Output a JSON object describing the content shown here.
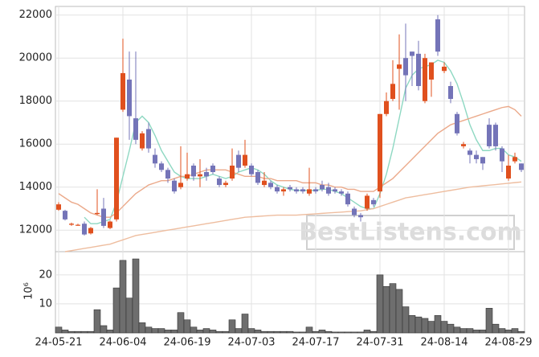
{
  "chart_data": {
    "type": "candlestick",
    "categories": [
      "24-05-21",
      null,
      null,
      null,
      null,
      null,
      null,
      null,
      null,
      null,
      "24-06-04",
      null,
      null,
      null,
      null,
      null,
      null,
      null,
      null,
      null,
      "24-06-19",
      null,
      null,
      null,
      null,
      null,
      null,
      null,
      null,
      null,
      "24-07-03",
      null,
      null,
      null,
      null,
      null,
      null,
      null,
      null,
      null,
      "24-07-17",
      null,
      null,
      null,
      null,
      null,
      null,
      null,
      null,
      null,
      "24-07-31",
      null,
      null,
      null,
      null,
      null,
      null,
      null,
      null,
      null,
      "24-08-14",
      null,
      null,
      null,
      null,
      null,
      null,
      null,
      null,
      null,
      "24-08-29",
      null,
      null
    ],
    "open": [
      12950,
      12900,
      12250,
      12250,
      12300,
      11850,
      12750,
      13000,
      12100,
      12500,
      17600,
      19000,
      17200,
      15800,
      16700,
      15500,
      15100,
      14800,
      14300,
      14000,
      14400,
      15000,
      14500,
      14700,
      15000,
      14400,
      14100,
      14400,
      15500,
      15000,
      15000,
      14700,
      14100,
      14200,
      14000,
      13800,
      14000,
      13900,
      13900,
      13700,
      13900,
      14100,
      14000,
      13900,
      13800,
      13700,
      13000,
      12700,
      13000,
      13400,
      13800,
      17400,
      18100,
      19500,
      20000,
      20300,
      20200,
      18000,
      19000,
      21800,
      19400,
      18700,
      17400,
      15900,
      15700,
      15500,
      15400,
      16900,
      16900,
      15800,
      14400,
      15200,
      15100
    ],
    "high": [
      13300,
      12950,
      12350,
      12300,
      12400,
      12150,
      13900,
      13500,
      12450,
      16300,
      20900,
      20300,
      20300,
      16600,
      17000,
      15800,
      15200,
      14900,
      14400,
      15900,
      15600,
      15100,
      15300,
      14900,
      15100,
      14500,
      14300,
      15800,
      15700,
      16200,
      15100,
      14800,
      14700,
      14300,
      14100,
      14000,
      14100,
      14000,
      14000,
      14900,
      14000,
      14300,
      14200,
      14000,
      13900,
      13800,
      13100,
      12800,
      13700,
      13500,
      17400,
      18400,
      19900,
      21100,
      21600,
      20300,
      20800,
      20200,
      19800,
      22000,
      19800,
      18900,
      17500,
      16100,
      15800,
      15700,
      15400,
      17200,
      17000,
      15900,
      15500,
      15600,
      15100
    ],
    "low": [
      12900,
      12450,
      12200,
      12200,
      11750,
      11800,
      12700,
      12100,
      12050,
      12400,
      17500,
      16200,
      16000,
      15700,
      15600,
      14900,
      14700,
      14200,
      13700,
      13900,
      14300,
      14300,
      14000,
      14300,
      14600,
      14000,
      14000,
      14300,
      14700,
      14900,
      14500,
      14100,
      14000,
      13900,
      13700,
      13600,
      13800,
      13700,
      13700,
      13600,
      13700,
      13800,
      13600,
      13700,
      13600,
      13100,
      12600,
      12400,
      12900,
      13100,
      13500,
      17300,
      18000,
      17600,
      18000,
      18700,
      18500,
      17900,
      18200,
      20100,
      19300,
      17900,
      16400,
      15800,
      15100,
      15100,
      14800,
      15800,
      15700,
      14700,
      14300,
      15100,
      14700
    ],
    "close": [
      13200,
      12500,
      12300,
      12250,
      11800,
      12100,
      12800,
      12200,
      12400,
      16300,
      19300,
      17300,
      16200,
      16500,
      15800,
      15100,
      14800,
      14400,
      13800,
      14200,
      14600,
      14500,
      14600,
      14500,
      14700,
      14100,
      14200,
      15000,
      14900,
      15500,
      14600,
      14200,
      14300,
      14000,
      13800,
      13900,
      13900,
      13800,
      13800,
      13900,
      13800,
      13900,
      13700,
      13800,
      13700,
      13200,
      12700,
      12600,
      13600,
      13200,
      17400,
      18000,
      18800,
      19700,
      19200,
      20100,
      18700,
      20000,
      19800,
      20300,
      19600,
      18100,
      16500,
      16000,
      15500,
      15300,
      15100,
      15900,
      15900,
      15200,
      15000,
      15400,
      14800
    ],
    "up_color": "#e0501e",
    "down_color": "#7474b8",
    "ylim": [
      11000,
      22400
    ],
    "yticks": [
      12000,
      14000,
      16000,
      18000,
      20000,
      22000
    ],
    "grid": true,
    "lines": [
      {
        "color": "#8ed8c2",
        "values": [
          null,
          null,
          null,
          null,
          12600,
          12300,
          12300,
          12400,
          12500,
          13300,
          14500,
          15700,
          17000,
          17300,
          17000,
          16400,
          15700,
          15200,
          14700,
          14500,
          14400,
          14400,
          14400,
          14500,
          14600,
          14500,
          14400,
          14500,
          14700,
          14800,
          14900,
          14800,
          14600,
          14300,
          14100,
          14000,
          13900,
          13850,
          13850,
          13850,
          13850,
          13900,
          13900,
          13800,
          13700,
          13500,
          13300,
          13100,
          13000,
          13000,
          13700,
          14600,
          15800,
          17200,
          18600,
          19200,
          19500,
          19600,
          19700,
          19900,
          19800,
          19400,
          18800,
          17900,
          16900,
          16200,
          15700,
          15700,
          15800,
          15800,
          15500,
          15400,
          15200
        ]
      },
      {
        "color": "#eba98a",
        "values": [
          13700,
          13500,
          13300,
          13200,
          13000,
          12800,
          12700,
          12600,
          12600,
          12800,
          13100,
          13400,
          13700,
          13900,
          14100,
          14200,
          14300,
          14300,
          14400,
          14500,
          14500,
          14600,
          14700,
          14800,
          14800,
          14800,
          14800,
          14700,
          14600,
          14500,
          14500,
          14500,
          14400,
          14400,
          14300,
          14300,
          14300,
          14300,
          14200,
          14200,
          14200,
          14100,
          14100,
          14000,
          14000,
          13900,
          13900,
          13800,
          13800,
          13800,
          14000,
          14200,
          14400,
          14700,
          15000,
          15300,
          15600,
          15900,
          16200,
          16500,
          16700,
          16900,
          17000,
          17100,
          17200,
          17300,
          17400,
          17500,
          17600,
          17700,
          17750,
          17600,
          17300
        ]
      },
      {
        "color": "#eebd9f",
        "values": [
          null,
          11000,
          11050,
          11100,
          11150,
          11200,
          11250,
          11300,
          11350,
          11450,
          11550,
          11650,
          11750,
          11800,
          11850,
          11900,
          11950,
          12000,
          12050,
          12100,
          12150,
          12200,
          12250,
          12300,
          12350,
          12400,
          12450,
          12500,
          12550,
          12600,
          12620,
          12640,
          12660,
          12680,
          12700,
          12700,
          12700,
          12700,
          12720,
          12740,
          12760,
          12780,
          12800,
          12820,
          12840,
          12860,
          12880,
          12900,
          12950,
          13000,
          13100,
          13200,
          13300,
          13400,
          13500,
          13550,
          13600,
          13650,
          13700,
          13750,
          13800,
          13850,
          13900,
          13950,
          14000,
          14030,
          14060,
          14090,
          14120,
          14150,
          14180,
          14210,
          14240
        ]
      }
    ],
    "volume": {
      "values": [
        2,
        1,
        0.5,
        0.5,
        0.5,
        0.5,
        8,
        2.5,
        1,
        15.5,
        25,
        12,
        25.5,
        3.5,
        2,
        1.5,
        1.5,
        1,
        1,
        7,
        4.5,
        2,
        1,
        1.5,
        1,
        0.5,
        0.5,
        4.5,
        1.5,
        6.5,
        1.5,
        1,
        0.5,
        0.5,
        0.5,
        0.5,
        0.5,
        0.3,
        0.3,
        2,
        0.5,
        1,
        0.5,
        0.3,
        0.3,
        0.3,
        0.3,
        0.3,
        1,
        0.5,
        20,
        16,
        17,
        15,
        9,
        6,
        5.5,
        5,
        4,
        6,
        4,
        3,
        2,
        1.5,
        1.5,
        1,
        1,
        8.5,
        3,
        1.5,
        1,
        1.5,
        0.5
      ],
      "color": "#6e6e6e",
      "ylim": [
        0,
        28
      ],
      "yticks": [
        10,
        20
      ],
      "ylabel": "10⁶"
    },
    "watermark": "BestListens.com"
  }
}
